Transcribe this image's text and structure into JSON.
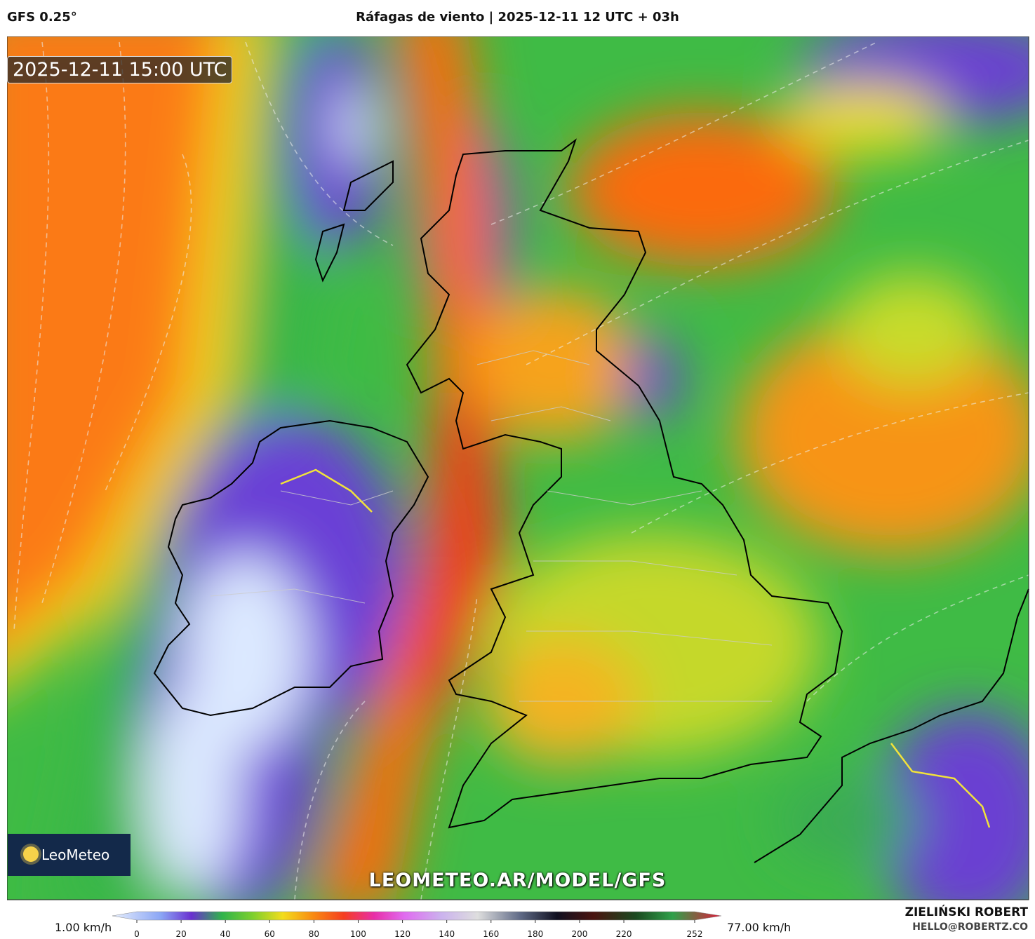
{
  "header": {
    "model": "GFS 0.25°",
    "title": "Ráfagas de viento | 2025-12-11 12 UTC + 03h"
  },
  "map": {
    "valid_time": "2025-12-11 15:00 UTC",
    "logo": "LeoMeteo",
    "watermark": "LEOMETEO.AR/MODEL/GFS"
  },
  "colorbar": {
    "min_label": "1.00 km/h",
    "max_label": "77.00 km/h",
    "ticks": [
      0,
      20,
      40,
      60,
      80,
      100,
      120,
      140,
      160,
      180,
      200,
      220,
      252
    ]
  },
  "footer": {
    "author": "ZIELIŃSKI ROBERT",
    "contact": "HELLO@ROBERTZ.CO"
  }
}
